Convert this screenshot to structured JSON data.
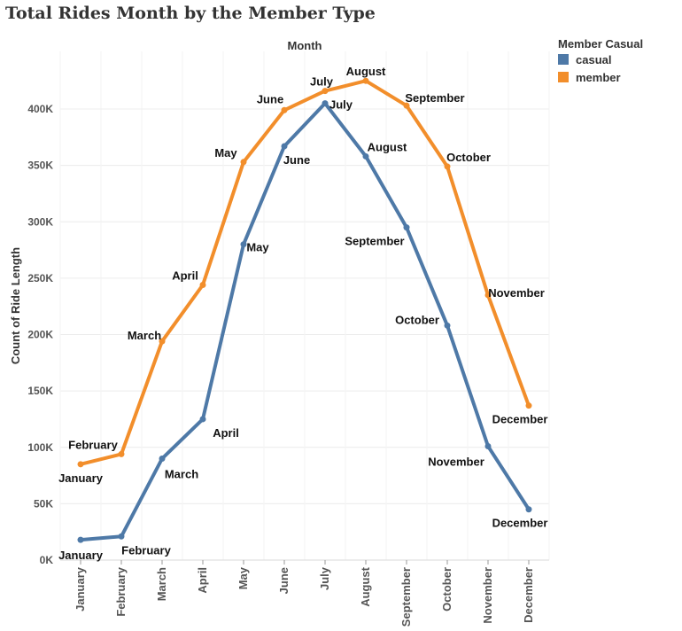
{
  "chart_data": {
    "type": "line",
    "title": "Total Rides Month by the Member Type",
    "top_label": "Month",
    "ylabel": "Count of Ride Length",
    "xlabel": "",
    "categories": [
      "January",
      "February",
      "March",
      "April",
      "May",
      "June",
      "July",
      "August",
      "September",
      "October",
      "November",
      "December"
    ],
    "yticks": [
      0,
      50000,
      100000,
      150000,
      200000,
      250000,
      300000,
      350000,
      400000
    ],
    "ytick_labels": [
      "0K",
      "50K",
      "100K",
      "150K",
      "200K",
      "250K",
      "300K",
      "350K",
      "400K"
    ],
    "ylim": [
      0,
      420000
    ],
    "grid": true,
    "legend": {
      "title": "Member Casual",
      "placement": "top-right",
      "items": [
        "casual",
        "member"
      ]
    },
    "series": [
      {
        "name": "casual",
        "color": "#4e79a7",
        "values": [
          18000,
          21000,
          90000,
          125000,
          280000,
          367000,
          405000,
          358000,
          295000,
          208000,
          101000,
          45000
        ]
      },
      {
        "name": "member",
        "color": "#f28e2b",
        "values": [
          85000,
          94000,
          194000,
          244000,
          353000,
          399000,
          416000,
          425000,
          403000,
          349000,
          235000,
          137000
        ]
      }
    ]
  }
}
